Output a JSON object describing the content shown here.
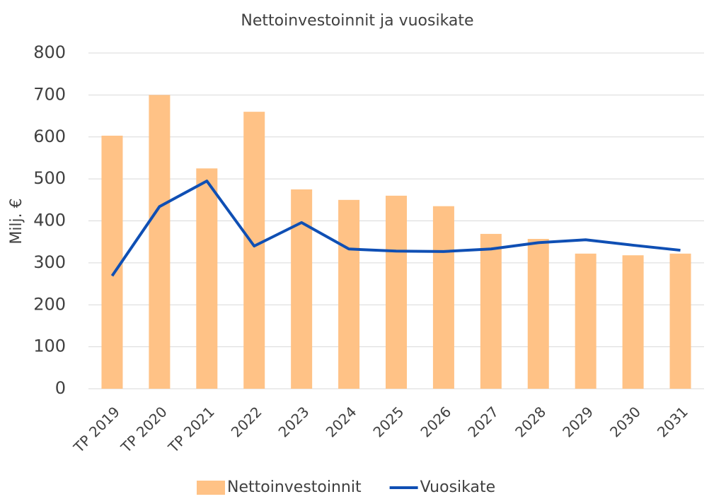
{
  "chart_data": {
    "type": "combo",
    "title": "Nettoinvestoinnit ja vuosikate",
    "ylabel": "Milj. €",
    "categories": [
      "TP 2019",
      "TP 2020",
      "TP 2021",
      "2022",
      "2023",
      "2024",
      "2025",
      "2026",
      "2027",
      "2028",
      "2029",
      "2030",
      "2031"
    ],
    "series": [
      {
        "name": "Nettoinvestoinnit",
        "type": "bar",
        "color": "#ffc286",
        "values": [
          603,
          700,
          525,
          660,
          475,
          450,
          460,
          435,
          369,
          357,
          322,
          318,
          322
        ]
      },
      {
        "name": "Vuosikate",
        "type": "line",
        "color": "#0f4fb4",
        "values": [
          269,
          434,
          495,
          340,
          396,
          333,
          328,
          327,
          333,
          348,
          355,
          342,
          330
        ]
      }
    ],
    "ylim": [
      0,
      800
    ],
    "yticks": [
      0,
      100,
      200,
      300,
      400,
      500,
      600,
      700,
      800
    ],
    "grid": true,
    "legend": "bottom"
  }
}
